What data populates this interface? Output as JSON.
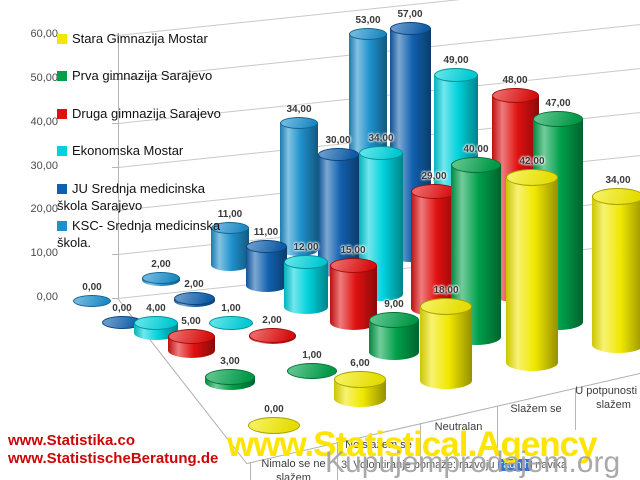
{
  "chart_data": {
    "type": "bar",
    "subtype": "3d-cylinder",
    "title": "",
    "categories": [
      "Nimalo se ne slažem",
      "Ne slažem se",
      "Neutralan",
      "Slažem se",
      "U potpunosti se slažem"
    ],
    "series": [
      {
        "name": "Stara Gimnazija Mostar",
        "color": "#f0e800",
        "values": [
          0,
          6,
          18,
          42,
          34
        ]
      },
      {
        "name": "Prva gimnazija Sarajevo",
        "color": "#00a04a",
        "values": [
          3,
          1,
          9,
          40,
          47
        ]
      },
      {
        "name": "Druga gimnazija Sarajevo",
        "color": "#e01010",
        "values": [
          5,
          2,
          15,
          29,
          48
        ]
      },
      {
        "name": "Ekonomska Mostar",
        "color": "#00d2dc",
        "values": [
          4,
          1,
          12,
          34,
          49
        ]
      },
      {
        "name": "JU Srednja medicinska škola Sarajevo",
        "color": "#1160ae",
        "values": [
          0,
          2,
          11,
          30,
          57
        ]
      },
      {
        "name": "KSC- Srednja medicinska škola.",
        "color": "#1e90cc",
        "values": [
          0,
          2,
          11,
          34,
          53
        ]
      }
    ],
    "ylim": [
      0,
      60
    ],
    "ytick_labels": [
      "0,00",
      "10,00",
      "20,00",
      "30,00",
      "40,00",
      "50,00",
      "60,00"
    ],
    "value_decimal_suffix": ",00",
    "grid": true,
    "legend_position": "top-left"
  },
  "caption": {
    "prefix": "3. Volontiranje pomaže: razvoju ",
    "highlight": "radnih",
    "suffix": " navika"
  },
  "watermarks": {
    "red_links": [
      "www.Statistika.co",
      "www.StatistischeBeratung.de"
    ],
    "yellow": "www.Statistical.Agency",
    "gray": "Kupujemprodajem.org"
  }
}
